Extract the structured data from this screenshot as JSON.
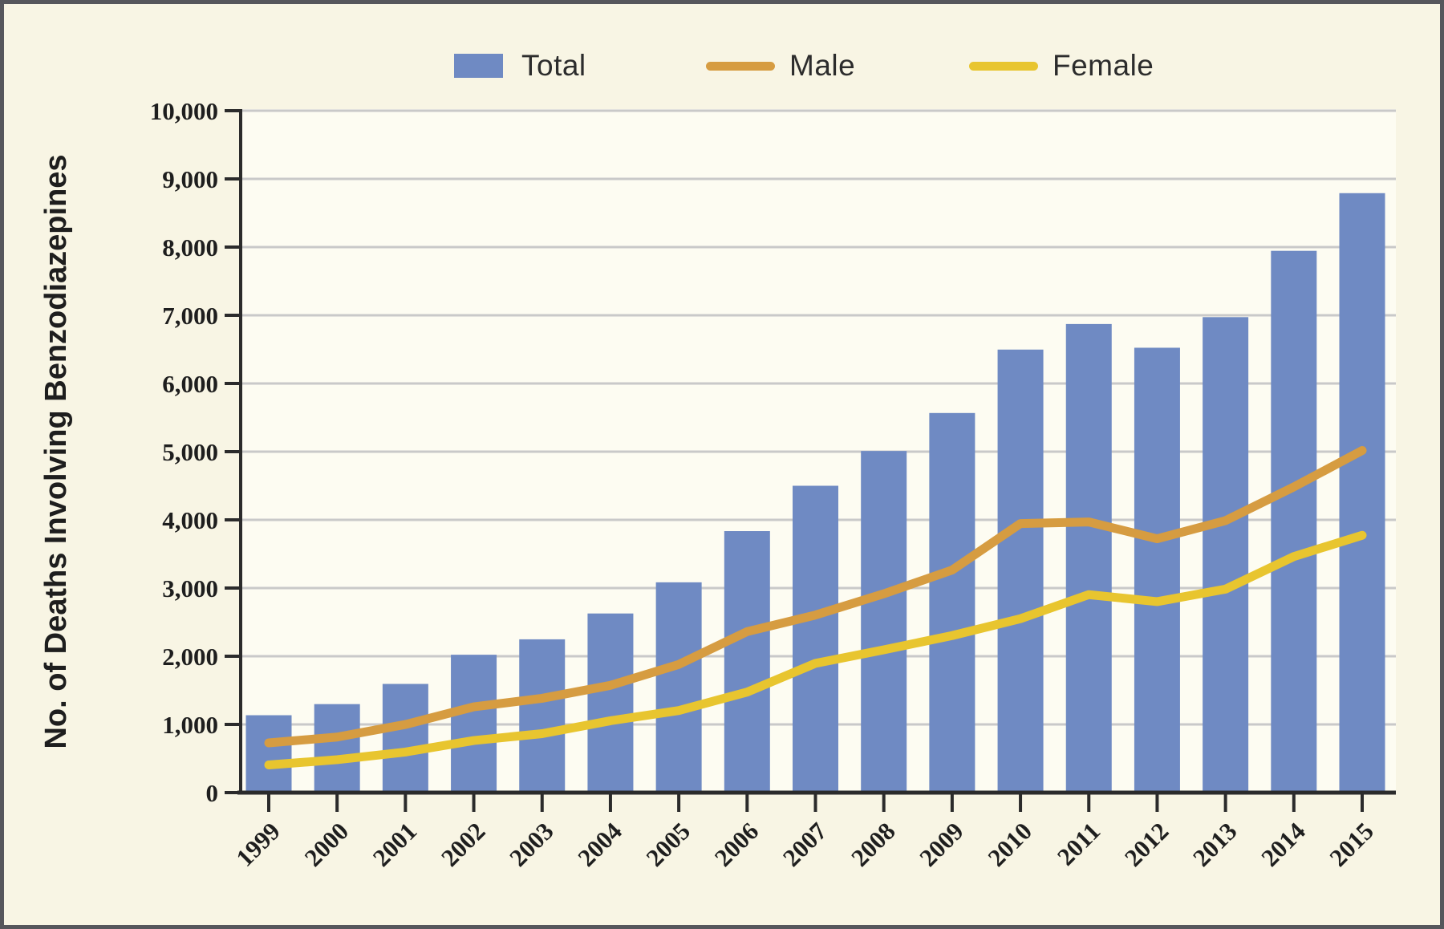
{
  "figure": {
    "background_color": "#f8f5e4",
    "plot_background_color": "#fdfcf2",
    "border_color": "#56575c",
    "grid_color": "#c9c9c9",
    "axis_color": "#2b2b2b",
    "tick_label_color": "#1e1e1e",
    "legend_text_color": "#2c2c2c"
  },
  "chart_data": {
    "type": "bar",
    "overlay": "line",
    "title": "",
    "xlabel": "",
    "ylabel": "No. of Deaths Involving Benzodiazepines",
    "ylim": [
      0,
      10000
    ],
    "ytick_step": 1000,
    "grid": true,
    "legend_position": "top",
    "y_tick_labels": [
      "0",
      "1,000",
      "2,000",
      "3,000",
      "4,000",
      "5,000",
      "6,000",
      "7,000",
      "8,000",
      "9,000",
      "10,000"
    ],
    "categories": [
      "1999",
      "2000",
      "2001",
      "2002",
      "2003",
      "2004",
      "2005",
      "2006",
      "2007",
      "2008",
      "2009",
      "2010",
      "2011",
      "2012",
      "2013",
      "2014",
      "2015"
    ],
    "series": [
      {
        "name": "Total",
        "render": "bar",
        "color": "#6f8ac3",
        "values": [
          1135,
          1298,
          1594,
          2022,
          2248,
          2627,
          3084,
          3835,
          4500,
          5010,
          5567,
          6497,
          6872,
          6524,
          6973,
          7945,
          8791
        ]
      },
      {
        "name": "Male",
        "render": "line",
        "color": "#d69c41",
        "values": [
          729,
          815,
          999,
          1258,
          1383,
          1573,
          1880,
          2361,
          2604,
          2916,
          3264,
          3946,
          3969,
          3723,
          3989,
          4483,
          5017
        ]
      },
      {
        "name": "Female",
        "render": "line",
        "color": "#e8c52f",
        "values": [
          406,
          483,
          595,
          764,
          865,
          1054,
          1204,
          1474,
          1896,
          2094,
          2303,
          2551,
          2903,
          2801,
          2984,
          3462,
          3774
        ]
      }
    ]
  }
}
